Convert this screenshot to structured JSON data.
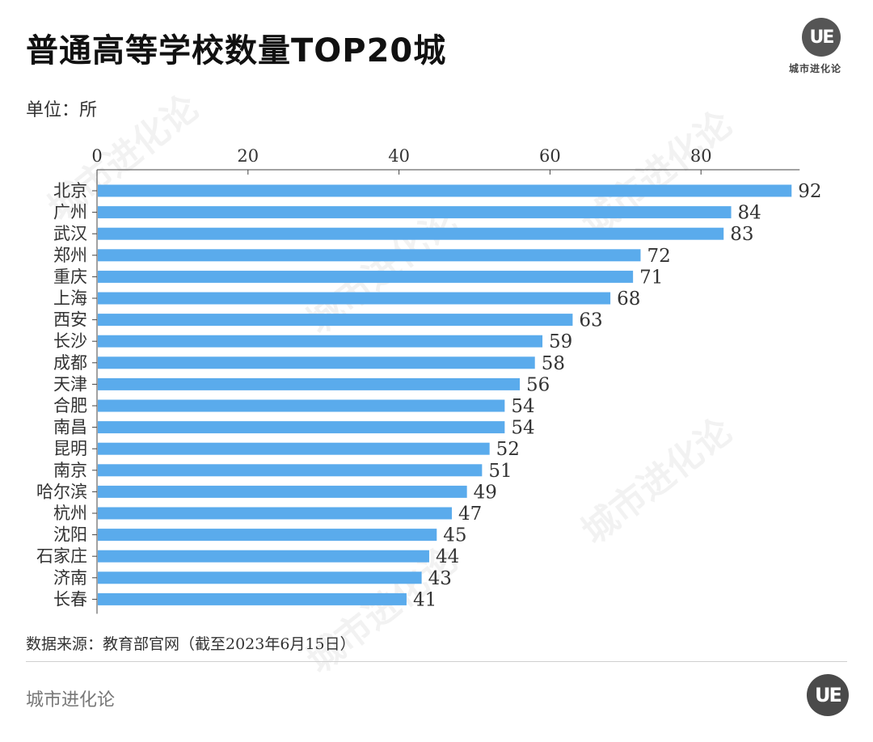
{
  "header": {
    "title": "普通高等学校数量TOP20城",
    "unit": "单位：所",
    "logo_mark": "UE",
    "logo_text": "城市进化论"
  },
  "footer": {
    "source": "数据来源：教育部官网（截至2023年6月15日）",
    "brand": "城市进化论",
    "logo_mark": "UE"
  },
  "colors": {
    "bar": "#5aabec",
    "axis": "#444444",
    "text": "#333333"
  },
  "chart_data": {
    "type": "bar",
    "orientation": "horizontal",
    "title": "普通高等学校数量TOP20城",
    "ylabel": "单位：所",
    "xlim": [
      0,
      92
    ],
    "xticks": [
      0,
      20,
      40,
      60,
      80
    ],
    "xaxis_position": "top",
    "categories": [
      "北京",
      "广州",
      "武汉",
      "郑州",
      "重庆",
      "上海",
      "西安",
      "长沙",
      "成都",
      "天津",
      "合肥",
      "南昌",
      "昆明",
      "南京",
      "哈尔滨",
      "杭州",
      "沈阳",
      "石家庄",
      "济南",
      "长春"
    ],
    "values": [
      92,
      84,
      83,
      72,
      71,
      68,
      63,
      59,
      58,
      56,
      54,
      54,
      52,
      51,
      49,
      47,
      45,
      44,
      43,
      41
    ]
  }
}
